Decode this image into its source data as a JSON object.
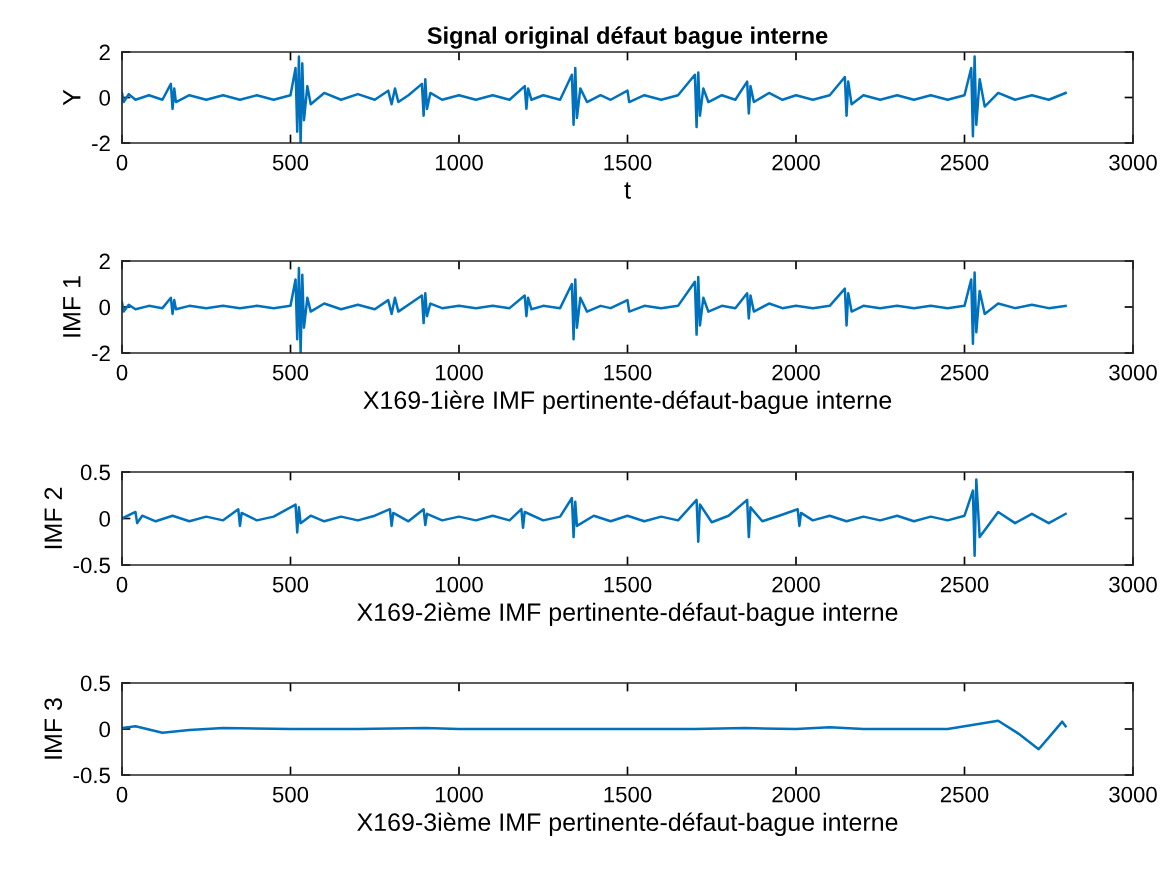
{
  "chart_data": [
    {
      "type": "line",
      "title": "Signal original défaut bague interne",
      "xlabel": "t",
      "ylabel": "Y",
      "xlim": [
        0,
        3000
      ],
      "xticks": [
        0,
        500,
        1000,
        1500,
        2000,
        2500,
        3000
      ],
      "ylim": [
        -2,
        2
      ],
      "yticks": [
        -2,
        0,
        2
      ],
      "series": [
        {
          "color": "#0072bd",
          "x": [
            0,
            5,
            20,
            40,
            80,
            120,
            145,
            150,
            155,
            160,
            200,
            250,
            300,
            350,
            400,
            450,
            500,
            515,
            520,
            525,
            530,
            535,
            540,
            550,
            560,
            600,
            650,
            700,
            750,
            790,
            800,
            810,
            820,
            850,
            890,
            895,
            900,
            905,
            915,
            950,
            1000,
            1050,
            1100,
            1150,
            1195,
            1200,
            1205,
            1215,
            1250,
            1300,
            1335,
            1340,
            1345,
            1350,
            1360,
            1380,
            1420,
            1450,
            1500,
            1505,
            1550,
            1600,
            1650,
            1700,
            1705,
            1710,
            1715,
            1725,
            1740,
            1780,
            1820,
            1855,
            1860,
            1865,
            1875,
            1920,
            1960,
            2000,
            2050,
            2100,
            2145,
            2150,
            2155,
            2165,
            2200,
            2250,
            2300,
            2350,
            2400,
            2450,
            2500,
            2520,
            2525,
            2530,
            2535,
            2545,
            2560,
            2600,
            2650,
            2700,
            2750,
            2800
          ],
          "values": [
            0.2,
            -0.2,
            0.15,
            -0.1,
            0.1,
            -0.1,
            0.6,
            -0.5,
            0.4,
            -0.2,
            0.1,
            -0.1,
            0.1,
            -0.1,
            0.1,
            -0.1,
            0.1,
            1.3,
            -1.5,
            1.8,
            -2.0,
            1.5,
            -1.0,
            0.5,
            -0.3,
            0.2,
            -0.1,
            0.15,
            -0.1,
            0.3,
            -0.3,
            0.4,
            -0.2,
            0.1,
            0.6,
            -0.8,
            0.8,
            -0.5,
            0.2,
            -0.1,
            0.1,
            -0.1,
            0.1,
            -0.1,
            0.5,
            -0.5,
            0.4,
            -0.1,
            0.1,
            -0.1,
            1.0,
            -1.2,
            1.3,
            -0.9,
            0.4,
            -0.2,
            0.1,
            -0.1,
            0.3,
            -0.2,
            0.1,
            -0.1,
            0.1,
            1.0,
            -1.3,
            1.1,
            -0.8,
            0.4,
            -0.2,
            0.1,
            -0.1,
            0.7,
            -0.7,
            0.5,
            -0.2,
            0.2,
            -0.1,
            0.1,
            -0.1,
            0.1,
            0.9,
            -0.8,
            0.7,
            -0.3,
            0.1,
            -0.1,
            0.1,
            -0.1,
            0.1,
            -0.1,
            0.1,
            1.3,
            -1.7,
            1.8,
            -1.2,
            0.8,
            -0.4,
            0.2,
            -0.1,
            0.1,
            -0.1,
            0.2
          ]
        }
      ]
    },
    {
      "type": "line",
      "xlabel": "X169-1ière IMF pertinente-défaut-bague interne",
      "ylabel": "IMF 1",
      "xlim": [
        0,
        3000
      ],
      "xticks": [
        0,
        500,
        1000,
        1500,
        2000,
        2500,
        3000
      ],
      "ylim": [
        -2,
        2
      ],
      "yticks": [
        -2,
        0,
        2
      ],
      "series": [
        {
          "color": "#0072bd",
          "x": [
            0,
            5,
            20,
            40,
            80,
            120,
            145,
            150,
            155,
            160,
            200,
            250,
            300,
            350,
            400,
            450,
            500,
            515,
            520,
            525,
            530,
            535,
            540,
            550,
            560,
            600,
            650,
            700,
            750,
            790,
            800,
            810,
            820,
            850,
            890,
            895,
            900,
            905,
            915,
            950,
            1000,
            1050,
            1100,
            1150,
            1195,
            1200,
            1205,
            1215,
            1250,
            1300,
            1335,
            1340,
            1345,
            1350,
            1360,
            1380,
            1420,
            1450,
            1500,
            1505,
            1550,
            1600,
            1650,
            1700,
            1705,
            1710,
            1715,
            1725,
            1740,
            1780,
            1820,
            1855,
            1860,
            1865,
            1875,
            1920,
            1960,
            2000,
            2050,
            2100,
            2145,
            2150,
            2155,
            2165,
            2200,
            2250,
            2300,
            2350,
            2400,
            2450,
            2500,
            2520,
            2525,
            2530,
            2535,
            2545,
            2560,
            2600,
            2650,
            2700,
            2750,
            2800
          ],
          "values": [
            0.2,
            -0.2,
            0.1,
            -0.1,
            0.05,
            -0.05,
            0.4,
            -0.3,
            0.3,
            -0.1,
            0.05,
            -0.05,
            0.05,
            -0.05,
            0.05,
            -0.05,
            0.05,
            1.2,
            -1.4,
            1.7,
            -2.0,
            1.4,
            -0.9,
            0.4,
            -0.2,
            0.15,
            -0.1,
            0.1,
            -0.1,
            0.3,
            -0.3,
            0.4,
            -0.2,
            0.1,
            0.5,
            -0.7,
            0.6,
            -0.4,
            0.15,
            -0.05,
            0.05,
            -0.05,
            0.05,
            -0.05,
            0.5,
            -0.4,
            0.4,
            -0.1,
            0.05,
            -0.05,
            1.0,
            -1.4,
            1.2,
            -0.9,
            0.4,
            -0.2,
            0.05,
            -0.05,
            0.3,
            -0.2,
            0.05,
            -0.05,
            0.05,
            1.1,
            -1.2,
            1.3,
            -0.8,
            0.4,
            -0.2,
            0.05,
            -0.05,
            0.6,
            -0.5,
            0.5,
            -0.2,
            0.15,
            -0.05,
            0.05,
            -0.05,
            0.05,
            0.8,
            -0.8,
            0.6,
            -0.2,
            0.05,
            -0.05,
            0.05,
            -0.05,
            0.05,
            -0.05,
            0.05,
            1.2,
            -1.6,
            1.5,
            -1.1,
            0.7,
            -0.3,
            0.15,
            -0.05,
            0.1,
            -0.05,
            0.05
          ]
        }
      ]
    },
    {
      "type": "line",
      "xlabel": "X169-2ième IMF pertinente-défaut-bague interne",
      "ylabel": "IMF 2",
      "xlim": [
        0,
        3000
      ],
      "xticks": [
        0,
        500,
        1000,
        1500,
        2000,
        2500,
        3000
      ],
      "ylim": [
        -0.5,
        0.5
      ],
      "yticks": [
        -0.5,
        0,
        0.5
      ],
      "series": [
        {
          "color": "#0072bd",
          "x": [
            0,
            40,
            45,
            60,
            100,
            150,
            200,
            250,
            300,
            345,
            350,
            355,
            400,
            450,
            515,
            520,
            525,
            530,
            560,
            600,
            650,
            700,
            750,
            795,
            800,
            805,
            850,
            895,
            900,
            905,
            950,
            1000,
            1050,
            1100,
            1150,
            1185,
            1190,
            1195,
            1250,
            1300,
            1335,
            1340,
            1345,
            1350,
            1400,
            1450,
            1500,
            1550,
            1600,
            1650,
            1705,
            1710,
            1715,
            1750,
            1800,
            1855,
            1860,
            1865,
            1900,
            1950,
            2005,
            2010,
            2015,
            2050,
            2100,
            2150,
            2200,
            2250,
            2300,
            2350,
            2400,
            2450,
            2500,
            2525,
            2530,
            2535,
            2545,
            2600,
            2650,
            2700,
            2750,
            2800
          ],
          "values": [
            0,
            0.07,
            -0.05,
            0.03,
            -0.03,
            0.03,
            -0.03,
            0.02,
            -0.02,
            0.1,
            -0.08,
            0.06,
            -0.02,
            0.02,
            0.15,
            -0.15,
            0.12,
            -0.05,
            0.03,
            -0.03,
            0.02,
            -0.02,
            0.03,
            0.1,
            -0.08,
            0.06,
            -0.03,
            0.1,
            -0.07,
            0.05,
            -0.02,
            0.02,
            -0.02,
            0.03,
            -0.02,
            0.1,
            -0.1,
            0.07,
            -0.02,
            0.02,
            0.22,
            -0.2,
            0.18,
            -0.08,
            0.03,
            -0.03,
            0.03,
            -0.03,
            0.02,
            -0.02,
            0.2,
            -0.25,
            0.15,
            -0.04,
            0.03,
            0.2,
            -0.2,
            0.12,
            -0.03,
            0.03,
            0.1,
            -0.08,
            0.06,
            -0.02,
            0.03,
            -0.03,
            0.02,
            -0.02,
            0.03,
            -0.03,
            0.02,
            -0.02,
            0.03,
            0.3,
            -0.4,
            0.42,
            -0.2,
            0.07,
            -0.05,
            0.05,
            -0.05,
            0.05
          ]
        }
      ]
    },
    {
      "type": "line",
      "xlabel": "X169-3ième IMF pertinente-défaut-bague interne",
      "ylabel": "IMF 3",
      "xlim": [
        0,
        3000
      ],
      "xticks": [
        0,
        500,
        1000,
        1500,
        2000,
        2500,
        3000
      ],
      "ylim": [
        -0.5,
        0.5
      ],
      "yticks": [
        -0.5,
        0,
        0.5
      ],
      "series": [
        {
          "color": "#0072bd",
          "x": [
            0,
            40,
            120,
            200,
            300,
            500,
            700,
            900,
            1000,
            1200,
            1500,
            1700,
            1850,
            2000,
            2100,
            2200,
            2450,
            2600,
            2660,
            2720,
            2760,
            2790,
            2800
          ],
          "values": [
            0.01,
            0.03,
            -0.04,
            -0.01,
            0.01,
            0,
            0,
            0.01,
            0,
            0,
            0,
            0,
            0.01,
            0,
            0.02,
            0,
            0,
            0.09,
            -0.05,
            -0.22,
            -0.05,
            0.08,
            0.03
          ]
        }
      ]
    }
  ]
}
